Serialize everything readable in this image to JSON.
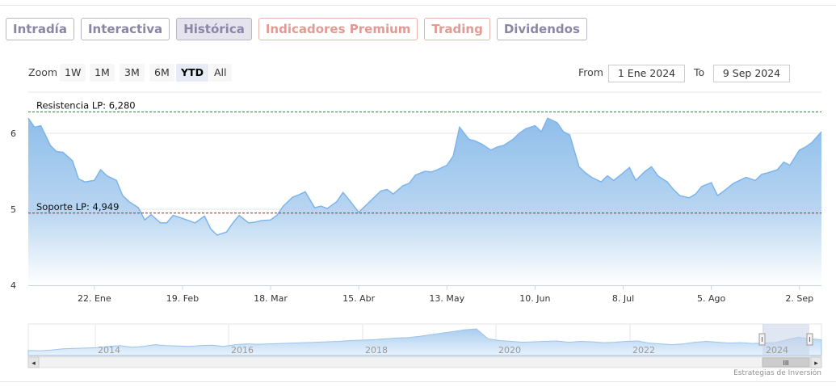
{
  "tabs": [
    {
      "label": "Intradía",
      "state": "normal"
    },
    {
      "label": "Interactiva",
      "state": "normal"
    },
    {
      "label": "Histórica",
      "state": "active"
    },
    {
      "label": "Indicadores Premium",
      "state": "premium"
    },
    {
      "label": "Trading",
      "state": "premium"
    },
    {
      "label": "Dividendos",
      "state": "normal"
    }
  ],
  "range_selector": {
    "zoom_label": "Zoom",
    "buttons": [
      "1W",
      "1M",
      "3M",
      "6M",
      "YTD",
      "All"
    ],
    "selected": "YTD",
    "from_label": "From",
    "from_value": "1 Ene 2024",
    "to_label": "To",
    "to_value": "9 Sep 2024"
  },
  "colors": {
    "series_line": "#7cb5ec",
    "series_fill_top": "#8fbeea",
    "resistance_line": "#2e7d32",
    "support_line": "#b71c1c",
    "tab_normal": "#8b86a6",
    "tab_premium": "#e39a93"
  },
  "chart_data": {
    "type": "area",
    "title": "",
    "xlabel": "",
    "ylabel": "",
    "y_ticks": [
      "4",
      "5",
      "6"
    ],
    "ylim": [
      4,
      6.5
    ],
    "xlim": [
      "2024-01-01",
      "2024-09-09"
    ],
    "x_ticks": [
      {
        "date": "2024-01-22",
        "label": "22. Ene"
      },
      {
        "date": "2024-02-19",
        "label": "19. Feb"
      },
      {
        "date": "2024-03-18",
        "label": "18. Mar"
      },
      {
        "date": "2024-04-15",
        "label": "15. Abr"
      },
      {
        "date": "2024-05-13",
        "label": "13. May"
      },
      {
        "date": "2024-06-10",
        "label": "10. Jun"
      },
      {
        "date": "2024-07-08",
        "label": "8. Jul"
      },
      {
        "date": "2024-08-05",
        "label": "5. Ago"
      },
      {
        "date": "2024-09-02",
        "label": "2. Sep"
      }
    ],
    "grid": true,
    "lines": [
      {
        "label": "Resistencia LP: 6,280",
        "value": 6.28,
        "style": "dashed",
        "color": "#2e7d32"
      },
      {
        "label": "Soporte LP: 4,949",
        "value": 4.949,
        "style": "dashed",
        "color": "#b71c1c"
      }
    ],
    "series": [
      {
        "x": [
          "2024-01-01",
          "2024-01-03",
          "2024-01-05",
          "2024-01-08",
          "2024-01-10",
          "2024-01-12",
          "2024-01-15",
          "2024-01-17",
          "2024-01-19",
          "2024-01-22",
          "2024-01-24",
          "2024-01-26",
          "2024-01-29",
          "2024-01-31",
          "2024-02-02",
          "2024-02-05",
          "2024-02-07",
          "2024-02-09",
          "2024-02-12",
          "2024-02-14",
          "2024-02-16",
          "2024-02-19",
          "2024-02-21",
          "2024-02-23",
          "2024-02-26",
          "2024-02-28",
          "2024-03-01",
          "2024-03-04",
          "2024-03-06",
          "2024-03-08",
          "2024-03-11",
          "2024-03-13",
          "2024-03-15",
          "2024-03-18",
          "2024-03-20",
          "2024-03-22",
          "2024-03-25",
          "2024-03-27",
          "2024-03-29",
          "2024-04-01",
          "2024-04-03",
          "2024-04-05",
          "2024-04-08",
          "2024-04-10",
          "2024-04-12",
          "2024-04-15",
          "2024-04-17",
          "2024-04-19",
          "2024-04-22",
          "2024-04-24",
          "2024-04-26",
          "2024-04-29",
          "2024-05-01",
          "2024-05-03",
          "2024-05-06",
          "2024-05-08",
          "2024-05-10",
          "2024-05-13",
          "2024-05-15",
          "2024-05-17",
          "2024-05-20",
          "2024-05-22",
          "2024-05-24",
          "2024-05-27",
          "2024-05-29",
          "2024-05-31",
          "2024-06-03",
          "2024-06-05",
          "2024-06-07",
          "2024-06-10",
          "2024-06-12",
          "2024-06-14",
          "2024-06-17",
          "2024-06-19",
          "2024-06-21",
          "2024-06-24",
          "2024-06-26",
          "2024-06-28",
          "2024-07-01",
          "2024-07-03",
          "2024-07-05",
          "2024-07-08",
          "2024-07-10",
          "2024-07-12",
          "2024-07-15",
          "2024-07-17",
          "2024-07-19",
          "2024-07-22",
          "2024-07-24",
          "2024-07-26",
          "2024-07-29",
          "2024-07-31",
          "2024-08-02",
          "2024-08-05",
          "2024-08-07",
          "2024-08-09",
          "2024-08-12",
          "2024-08-14",
          "2024-08-16",
          "2024-08-19",
          "2024-08-21",
          "2024-08-23",
          "2024-08-26",
          "2024-08-28",
          "2024-08-30",
          "2024-09-02",
          "2024-09-04",
          "2024-09-06",
          "2024-09-09"
        ],
        "values": [
          6.2,
          6.08,
          6.1,
          5.84,
          5.76,
          5.75,
          5.64,
          5.4,
          5.36,
          5.38,
          5.52,
          5.44,
          5.38,
          5.18,
          5.1,
          5.02,
          4.86,
          4.93,
          4.82,
          4.82,
          4.92,
          4.88,
          4.85,
          4.82,
          4.91,
          4.74,
          4.66,
          4.7,
          4.82,
          4.92,
          4.82,
          4.83,
          4.85,
          4.86,
          4.92,
          5.04,
          5.16,
          5.19,
          5.23,
          5.02,
          5.04,
          5.01,
          5.1,
          5.22,
          5.12,
          4.96,
          5.04,
          5.12,
          5.24,
          5.26,
          5.2,
          5.31,
          5.34,
          5.45,
          5.5,
          5.49,
          5.52,
          5.58,
          5.7,
          6.08,
          5.92,
          5.9,
          5.86,
          5.78,
          5.82,
          5.84,
          5.92,
          6.0,
          6.06,
          6.1,
          6.02,
          6.2,
          6.14,
          6.02,
          5.98,
          5.56,
          5.48,
          5.42,
          5.36,
          5.44,
          5.38,
          5.48,
          5.55,
          5.38,
          5.5,
          5.56,
          5.44,
          5.36,
          5.26,
          5.18,
          5.15,
          5.2,
          5.3,
          5.35,
          5.18,
          5.24,
          5.34,
          5.38,
          5.42,
          5.38,
          5.46,
          5.48,
          5.52,
          5.62,
          5.58,
          5.78,
          5.82,
          5.88,
          6.02
        ]
      }
    ],
    "navigator": {
      "x_ticks": [
        "2014",
        "2016",
        "2018",
        "2020",
        "2022",
        "2024"
      ],
      "values": [
        3.6,
        3.55,
        3.65,
        3.8,
        3.85,
        3.9,
        3.95,
        4.1,
        4.2,
        4.0,
        4.1,
        4.3,
        4.2,
        4.15,
        4.1,
        4.2,
        4.25,
        4.1,
        4.3,
        4.4,
        4.35,
        4.4,
        4.45,
        4.5,
        4.55,
        4.6,
        4.65,
        4.7,
        4.8,
        4.85,
        4.9,
        5.0,
        5.1,
        5.15,
        5.3,
        5.5,
        5.7,
        5.9,
        6.1,
        6.2,
        5.0,
        4.8,
        4.7,
        4.6,
        4.65,
        4.7,
        4.75,
        4.6,
        4.7,
        4.65,
        4.55,
        4.6,
        4.7,
        4.75,
        4.5,
        4.4,
        4.3,
        4.4,
        4.6,
        4.7,
        4.6,
        4.5,
        4.55,
        4.45,
        4.5,
        4.55,
        4.9,
        5.2,
        5.0,
        4.9
      ]
    }
  },
  "scrollbar": {
    "grip_glyph": "III",
    "left_arrow": "◂",
    "right_arrow": "▸"
  },
  "credits": "Estrategias de Inversión"
}
